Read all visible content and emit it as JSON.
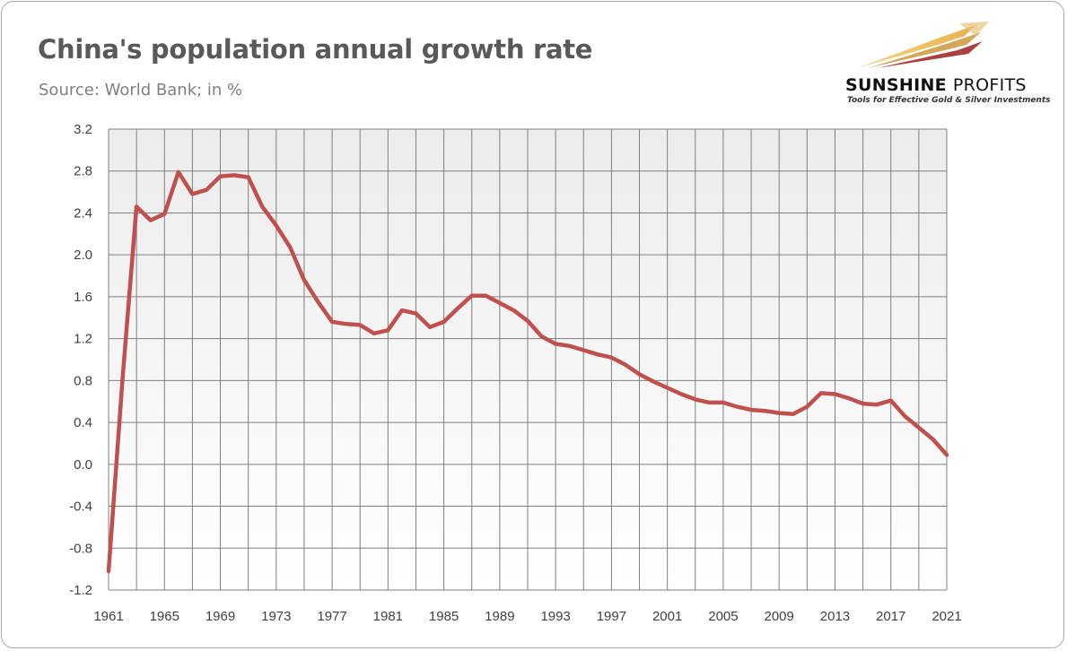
{
  "header": {
    "title": "China's population annual growth rate",
    "subtitle": "Source: World Bank; in %"
  },
  "logo": {
    "name_part1": "SUNSHINE",
    "name_part2": "PROFITS",
    "tagline": "Tools for Effective Gold & Silver Investments"
  },
  "colors": {
    "line": "#c0504d",
    "grid": "#7f7f7f",
    "plot_bg_top": "#ececec",
    "plot_bg_bottom": "#ffffff"
  },
  "chart_data": {
    "type": "line",
    "title": "China's population annual growth rate",
    "subtitle": "Source: World Bank; in %",
    "xlabel": "",
    "ylabel": "",
    "ylim": [
      -1.2,
      3.2
    ],
    "ytick_step": 0.4,
    "xlim": [
      1961,
      2021
    ],
    "xtick_labels": [
      "1961",
      "1965",
      "1969",
      "1973",
      "1977",
      "1981",
      "1985",
      "1989",
      "1993",
      "1997",
      "2001",
      "2005",
      "2009",
      "2013",
      "2017",
      "2021"
    ],
    "grid": true,
    "legend": "none",
    "series": [
      {
        "name": "China's population annual growth rate",
        "x": [
          1961,
          1962,
          1963,
          1964,
          1965,
          1966,
          1967,
          1968,
          1969,
          1970,
          1971,
          1972,
          1973,
          1974,
          1975,
          1976,
          1977,
          1978,
          1979,
          1980,
          1981,
          1982,
          1983,
          1984,
          1985,
          1986,
          1987,
          1988,
          1989,
          1990,
          1991,
          1992,
          1993,
          1994,
          1995,
          1996,
          1997,
          1998,
          1999,
          2000,
          2001,
          2002,
          2003,
          2004,
          2005,
          2006,
          2007,
          2008,
          2009,
          2010,
          2011,
          2012,
          2013,
          2014,
          2015,
          2016,
          2017,
          2018,
          2019,
          2020,
          2021
        ],
        "values": [
          -1.02,
          0.82,
          2.46,
          2.33,
          2.39,
          2.79,
          2.58,
          2.62,
          2.75,
          2.76,
          2.74,
          2.46,
          2.28,
          2.07,
          1.76,
          1.55,
          1.36,
          1.34,
          1.33,
          1.25,
          1.28,
          1.47,
          1.44,
          1.31,
          1.36,
          1.49,
          1.61,
          1.61,
          1.54,
          1.47,
          1.37,
          1.22,
          1.15,
          1.13,
          1.09,
          1.05,
          1.02,
          0.95,
          0.86,
          0.79,
          0.73,
          0.67,
          0.62,
          0.59,
          0.59,
          0.55,
          0.52,
          0.51,
          0.49,
          0.48,
          0.55,
          0.68,
          0.67,
          0.63,
          0.58,
          0.57,
          0.61,
          0.46,
          0.35,
          0.24,
          0.09
        ]
      }
    ]
  }
}
